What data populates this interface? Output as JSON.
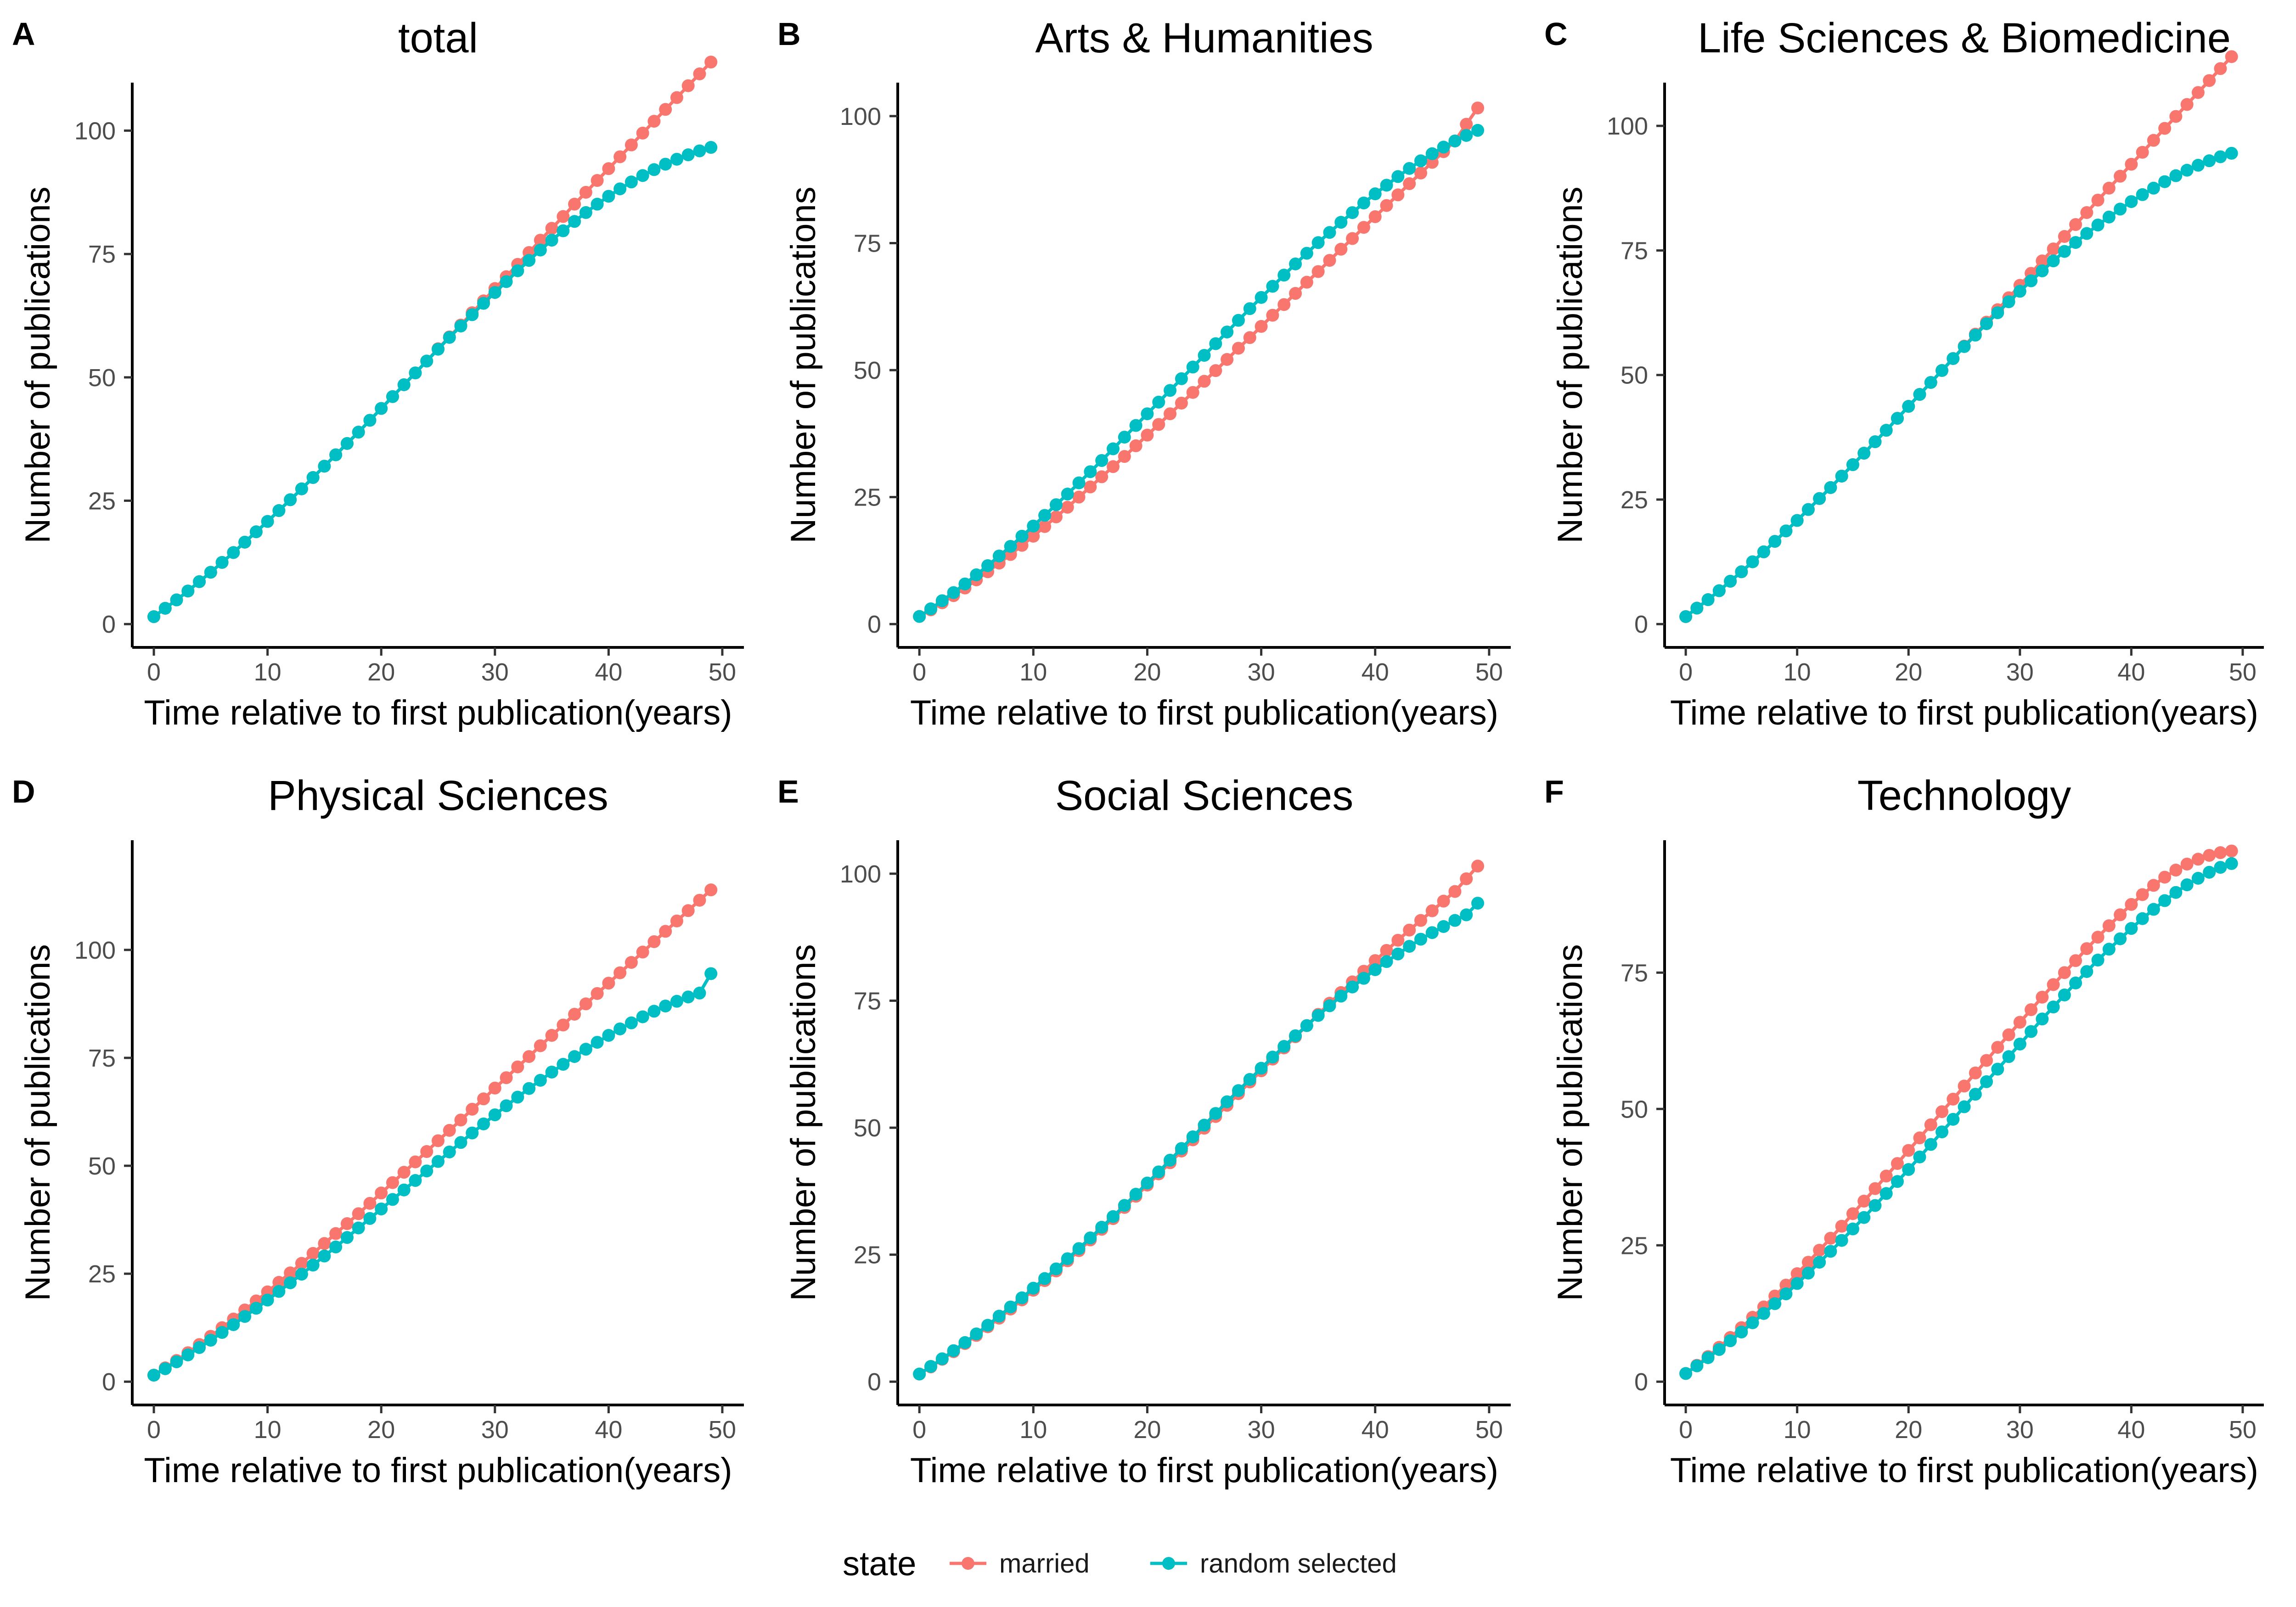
{
  "chart_data": [
    {
      "panel": "A",
      "title": "total",
      "type": "line",
      "xlabel": "Time relative to first publication(years)",
      "ylabel": "Number of publications",
      "xlim": [
        0,
        50
      ],
      "ylim": [
        0,
        105
      ],
      "xticks": [
        0,
        10,
        20,
        30,
        40,
        50
      ],
      "yticks": [
        0,
        25,
        50,
        75,
        100
      ],
      "x_start": 0,
      "x_step": 1,
      "series": [
        {
          "name": "married",
          "values": [
            1.5,
            3.2,
            4.9,
            6.7,
            8.6,
            10.5,
            12.5,
            14.5,
            16.6,
            18.7,
            20.8,
            23.0,
            25.2,
            27.4,
            29.7,
            32.0,
            34.3,
            36.6,
            38.9,
            41.3,
            43.7,
            46.1,
            48.5,
            50.9,
            53.3,
            55.8,
            58.2,
            60.6,
            63.1,
            65.5,
            68.0,
            70.4,
            72.9,
            75.3,
            77.8,
            80.2,
            82.6,
            85.1,
            87.5,
            89.9,
            92.3,
            94.7,
            97.1,
            99.5,
            101.9,
            104.3,
            106.7,
            109.1,
            111.5,
            113.9
          ]
        },
        {
          "name": "random selected",
          "values": [
            1.5,
            3.2,
            4.9,
            6.7,
            8.6,
            10.5,
            12.5,
            14.5,
            16.6,
            18.7,
            20.8,
            23.0,
            25.2,
            27.4,
            29.7,
            32.0,
            34.3,
            36.6,
            38.9,
            41.3,
            43.7,
            46.1,
            48.5,
            50.9,
            53.3,
            55.7,
            58.1,
            60.4,
            62.7,
            65.0,
            67.2,
            69.4,
            71.6,
            73.7,
            75.8,
            77.8,
            79.7,
            81.6,
            83.4,
            85.1,
            86.7,
            88.2,
            89.6,
            90.9,
            92.1,
            93.2,
            94.2,
            95.1,
            95.9,
            96.6
          ]
        }
      ]
    },
    {
      "panel": "B",
      "title": "Arts & Humanities",
      "type": "line",
      "xlabel": "Time relative to first publication(years)",
      "ylabel": "Number of publications",
      "xlim": [
        0,
        50
      ],
      "ylim": [
        0,
        102
      ],
      "xticks": [
        0,
        10,
        20,
        30,
        40,
        50
      ],
      "yticks": [
        0,
        25,
        50,
        75,
        100
      ],
      "x_start": 0,
      "x_step": 1,
      "series": [
        {
          "name": "married",
          "values": [
            1.5,
            2.8,
            4.2,
            5.6,
            7.1,
            8.7,
            10.3,
            12.0,
            13.7,
            15.5,
            17.3,
            19.2,
            21.1,
            23.0,
            25.0,
            27.0,
            29.0,
            31.0,
            33.0,
            35.1,
            37.2,
            39.3,
            41.4,
            43.5,
            45.6,
            47.8,
            49.9,
            52.1,
            54.3,
            56.4,
            58.6,
            60.8,
            62.9,
            65.1,
            67.3,
            69.4,
            71.6,
            73.8,
            75.9,
            78.1,
            80.2,
            82.4,
            84.5,
            86.7,
            88.8,
            90.9,
            93.0,
            95.1,
            98.4,
            101.6
          ]
        },
        {
          "name": "random selected",
          "values": [
            1.5,
            3.0,
            4.6,
            6.2,
            7.9,
            9.7,
            11.5,
            13.4,
            15.3,
            17.3,
            19.3,
            21.4,
            23.5,
            25.6,
            27.8,
            30.0,
            32.2,
            34.5,
            36.8,
            39.1,
            41.4,
            43.7,
            46.0,
            48.3,
            50.6,
            52.9,
            55.2,
            57.5,
            59.8,
            62.1,
            64.3,
            66.5,
            68.7,
            70.9,
            73.0,
            75.1,
            77.1,
            79.1,
            81.0,
            82.9,
            84.7,
            86.4,
            88.1,
            89.7,
            91.2,
            92.6,
            93.9,
            95.1,
            96.2,
            97.2
          ]
        }
      ]
    },
    {
      "panel": "C",
      "title": "Life Sciences & Biomedicine",
      "type": "line",
      "xlabel": "Time relative to first publication(years)",
      "ylabel": "Number of publications",
      "xlim": [
        0,
        50
      ],
      "ylim": [
        0,
        104
      ],
      "xticks": [
        0,
        10,
        20,
        30,
        40,
        50
      ],
      "yticks": [
        0,
        25,
        50,
        75,
        100
      ],
      "x_start": 0,
      "x_step": 1,
      "series": [
        {
          "name": "married",
          "values": [
            1.5,
            3.2,
            4.9,
            6.7,
            8.6,
            10.5,
            12.5,
            14.5,
            16.6,
            18.7,
            20.8,
            23.0,
            25.2,
            27.4,
            29.7,
            32.0,
            34.3,
            36.6,
            38.9,
            41.3,
            43.7,
            46.1,
            48.5,
            50.9,
            53.3,
            55.8,
            58.2,
            60.6,
            63.1,
            65.5,
            68.0,
            70.4,
            72.9,
            75.3,
            77.8,
            80.2,
            82.6,
            85.1,
            87.5,
            89.9,
            92.3,
            94.7,
            97.1,
            99.5,
            101.9,
            104.3,
            106.7,
            109.1,
            111.5,
            113.9
          ]
        },
        {
          "name": "random selected",
          "values": [
            1.5,
            3.2,
            4.9,
            6.7,
            8.6,
            10.5,
            12.5,
            14.5,
            16.6,
            18.7,
            20.8,
            23.0,
            25.2,
            27.4,
            29.7,
            32.0,
            34.3,
            36.6,
            38.9,
            41.3,
            43.7,
            46.1,
            48.5,
            50.9,
            53.3,
            55.7,
            58.0,
            60.3,
            62.5,
            64.7,
            66.8,
            68.9,
            70.9,
            72.9,
            74.8,
            76.6,
            78.4,
            80.1,
            81.7,
            83.3,
            84.8,
            86.2,
            87.5,
            88.8,
            90.0,
            91.1,
            92.1,
            93.0,
            93.8,
            94.5
          ]
        }
      ]
    },
    {
      "panel": "D",
      "title": "Physical Sciences",
      "type": "line",
      "xlabel": "Time relative to first publication(years)",
      "ylabel": "Number of publications",
      "xlim": [
        0,
        50
      ],
      "ylim": [
        0,
        120
      ],
      "xticks": [
        0,
        10,
        20,
        30,
        40,
        50
      ],
      "yticks": [
        0,
        25,
        50,
        75,
        100
      ],
      "x_start": 0,
      "x_step": 1,
      "series": [
        {
          "name": "married",
          "values": [
            1.5,
            3.2,
            4.9,
            6.7,
            8.6,
            10.5,
            12.5,
            14.5,
            16.6,
            18.7,
            20.8,
            23.0,
            25.2,
            27.4,
            29.7,
            32.0,
            34.3,
            36.6,
            38.9,
            41.3,
            43.7,
            46.1,
            48.5,
            50.9,
            53.3,
            55.8,
            58.2,
            60.6,
            63.1,
            65.5,
            68.0,
            70.4,
            72.9,
            75.3,
            77.8,
            80.2,
            82.6,
            85.1,
            87.5,
            89.9,
            92.3,
            94.7,
            97.1,
            99.5,
            101.9,
            104.3,
            106.7,
            109.1,
            111.5,
            113.9
          ]
        },
        {
          "name": "random selected",
          "values": [
            1.5,
            3.0,
            4.6,
            6.2,
            7.9,
            9.6,
            11.4,
            13.2,
            15.1,
            17.0,
            18.9,
            20.9,
            22.9,
            24.9,
            27.0,
            29.1,
            31.2,
            33.4,
            35.6,
            37.8,
            40.0,
            42.2,
            44.4,
            46.6,
            48.8,
            51.0,
            53.2,
            55.4,
            57.6,
            59.7,
            61.8,
            63.9,
            65.9,
            67.9,
            69.8,
            71.7,
            73.5,
            75.3,
            77.0,
            78.6,
            80.2,
            81.7,
            83.1,
            84.5,
            85.8,
            87.0,
            88.1,
            89.1,
            90.0,
            94.5
          ]
        }
      ]
    },
    {
      "panel": "E",
      "title": "Social Sciences",
      "type": "line",
      "xlabel": "Time relative to first publication(years)",
      "ylabel": "Number of publications",
      "xlim": [
        0,
        50
      ],
      "ylim": [
        0,
        102
      ],
      "xticks": [
        0,
        10,
        20,
        30,
        40,
        50
      ],
      "yticks": [
        0,
        25,
        50,
        75,
        100
      ],
      "x_start": 0,
      "x_step": 1,
      "series": [
        {
          "name": "married",
          "values": [
            1.5,
            2.9,
            4.4,
            5.9,
            7.5,
            9.1,
            10.8,
            12.5,
            14.3,
            16.1,
            18.0,
            19.9,
            21.8,
            23.8,
            25.8,
            27.9,
            30.0,
            32.1,
            34.3,
            36.5,
            38.7,
            40.9,
            43.1,
            45.4,
            47.6,
            49.9,
            52.2,
            54.4,
            56.7,
            59.0,
            61.2,
            63.5,
            65.7,
            67.9,
            70.1,
            72.3,
            74.5,
            76.6,
            78.7,
            80.8,
            82.9,
            84.9,
            86.9,
            88.9,
            90.8,
            92.7,
            94.6,
            96.5,
            99.0,
            101.5
          ]
        },
        {
          "name": "random selected",
          "values": [
            1.5,
            3.0,
            4.5,
            6.1,
            7.7,
            9.4,
            11.1,
            12.9,
            14.7,
            16.5,
            18.4,
            20.3,
            22.2,
            24.2,
            26.2,
            28.3,
            30.4,
            32.5,
            34.7,
            36.9,
            39.1,
            41.3,
            43.6,
            45.9,
            48.2,
            50.5,
            52.8,
            55.1,
            57.3,
            59.5,
            61.7,
            63.9,
            66.0,
            68.1,
            70.1,
            72.1,
            74.0,
            75.9,
            77.7,
            79.4,
            81.1,
            82.7,
            84.2,
            85.7,
            87.1,
            88.4,
            89.6,
            90.8,
            91.9,
            94.2
          ]
        }
      ]
    },
    {
      "panel": "F",
      "title": "Technology",
      "type": "line",
      "xlabel": "Time relative to first publication(years)",
      "ylabel": "Number of publications",
      "xlim": [
        0,
        50
      ],
      "ylim": [
        0,
        95
      ],
      "xticks": [
        0,
        10,
        20,
        30,
        40,
        50
      ],
      "yticks": [
        0,
        25,
        50,
        75
      ],
      "x_start": 0,
      "x_step": 1,
      "series": [
        {
          "name": "married",
          "values": [
            1.5,
            3.0,
            4.6,
            6.3,
            8.1,
            9.9,
            11.8,
            13.7,
            15.7,
            17.7,
            19.8,
            21.9,
            24.1,
            26.3,
            28.5,
            30.8,
            33.1,
            35.4,
            37.7,
            40.0,
            42.4,
            44.7,
            47.1,
            49.5,
            51.8,
            54.2,
            56.6,
            58.9,
            61.3,
            63.6,
            65.9,
            68.2,
            70.5,
            72.8,
            75.0,
            77.2,
            79.4,
            81.5,
            83.6,
            85.6,
            87.5,
            89.3,
            91.0,
            92.5,
            93.8,
            94.9,
            95.8,
            96.5,
            97.0,
            97.3
          ]
        },
        {
          "name": "random selected",
          "values": [
            1.5,
            2.9,
            4.4,
            5.9,
            7.5,
            9.1,
            10.8,
            12.5,
            14.3,
            16.1,
            18.0,
            19.9,
            21.9,
            23.9,
            25.9,
            28.0,
            30.1,
            32.3,
            34.5,
            36.7,
            38.9,
            41.2,
            43.5,
            45.8,
            48.1,
            50.4,
            52.7,
            55.0,
            57.3,
            59.6,
            61.9,
            64.2,
            66.5,
            68.7,
            70.9,
            73.1,
            75.2,
            77.3,
            79.3,
            81.2,
            83.1,
            84.9,
            86.6,
            88.2,
            89.7,
            91.1,
            92.3,
            93.4,
            94.3,
            95.0
          ]
        }
      ]
    }
  ],
  "legend": {
    "title": "state",
    "items": [
      {
        "label": "married",
        "color": "#F8766D"
      },
      {
        "label": "random selected",
        "color": "#00BFC4"
      }
    ]
  },
  "colors": {
    "married": "#F8766D",
    "random selected": "#00BFC4"
  }
}
